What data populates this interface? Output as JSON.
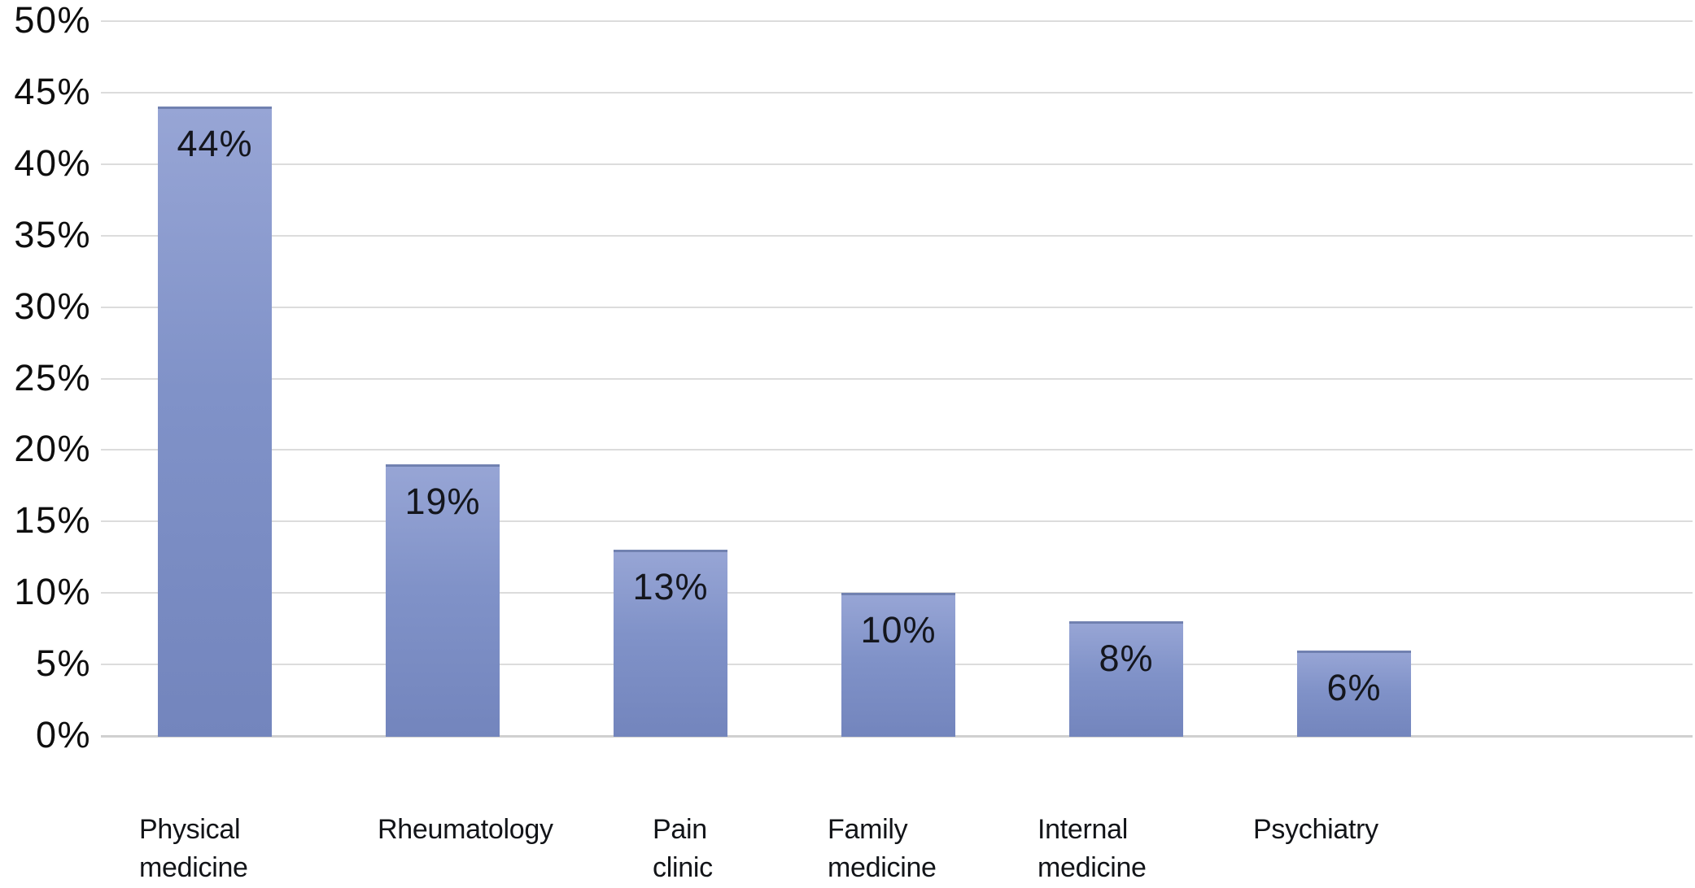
{
  "chart_data": {
    "type": "bar",
    "title": "",
    "xlabel": "",
    "ylabel": "",
    "categories": [
      "Physical medicine",
      "Rheumatology",
      "Pain clinic",
      "Family medicine",
      "Internal medicine",
      "Psychiatry"
    ],
    "category_lines": [
      [
        "Physical",
        "medicine"
      ],
      [
        "Rheumatology"
      ],
      [
        "Pain",
        "clinic"
      ],
      [
        "Family",
        "medicine"
      ],
      [
        "Internal",
        "medicine"
      ],
      [
        "Psychiatry"
      ]
    ],
    "values": [
      44,
      19,
      13,
      10,
      8,
      6
    ],
    "data_labels": [
      "44%",
      "19%",
      "13%",
      "10%",
      "8%",
      "6%"
    ],
    "ylim": [
      0,
      50
    ],
    "ytick_step": 5,
    "ytick_labels": [
      "50%",
      "45%",
      "40%",
      "35%",
      "30%",
      "25%",
      "20%",
      "15%",
      "10%",
      "5%",
      "0%"
    ],
    "grid": true,
    "legend": "none",
    "colors": {
      "bar_fill": "#8092c8",
      "bar_fill_top": "#97a5d5",
      "bar_fill_bottom": "#7385bd",
      "bar_top_edge": "#7181b0",
      "gridline": "#dcdcdc",
      "axis_line": "#d0d0d0",
      "text": "#0e0e0e",
      "data_label_text": "#14161d",
      "background": "#ffffff"
    }
  }
}
